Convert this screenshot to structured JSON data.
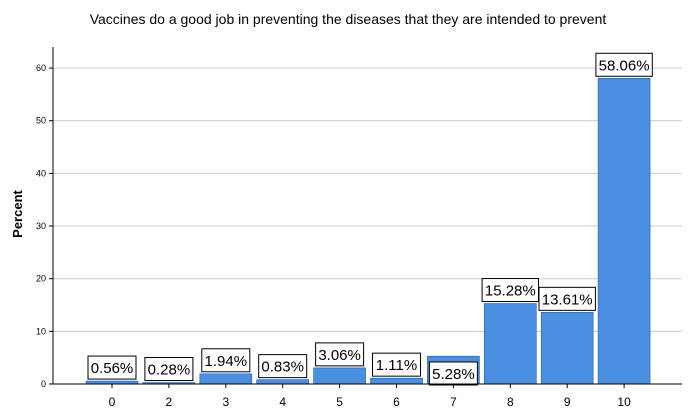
{
  "chart_data": {
    "type": "bar",
    "title": "Vaccines do a good job in preventing the diseases that they are intended to prevent",
    "xlabel": "",
    "ylabel": "Percent",
    "categories": [
      "0",
      "2",
      "3",
      "4",
      "5",
      "6",
      "7",
      "8",
      "9",
      "10"
    ],
    "values": [
      0.56,
      0.28,
      1.94,
      0.83,
      3.06,
      1.11,
      5.28,
      15.28,
      13.61,
      58.06
    ],
    "data_labels": [
      "0.56%",
      "0.28%",
      "1.94%",
      "0.83%",
      "3.06%",
      "1.11%",
      "5.28%",
      "15.28%",
      "13.61%",
      "58.06%"
    ],
    "yticks": [
      0,
      10,
      20,
      30,
      40,
      50,
      60
    ],
    "ylim": [
      0,
      64
    ],
    "grid": true,
    "bar_color": "#4a8fe0",
    "grid_color": "#cccccc"
  }
}
